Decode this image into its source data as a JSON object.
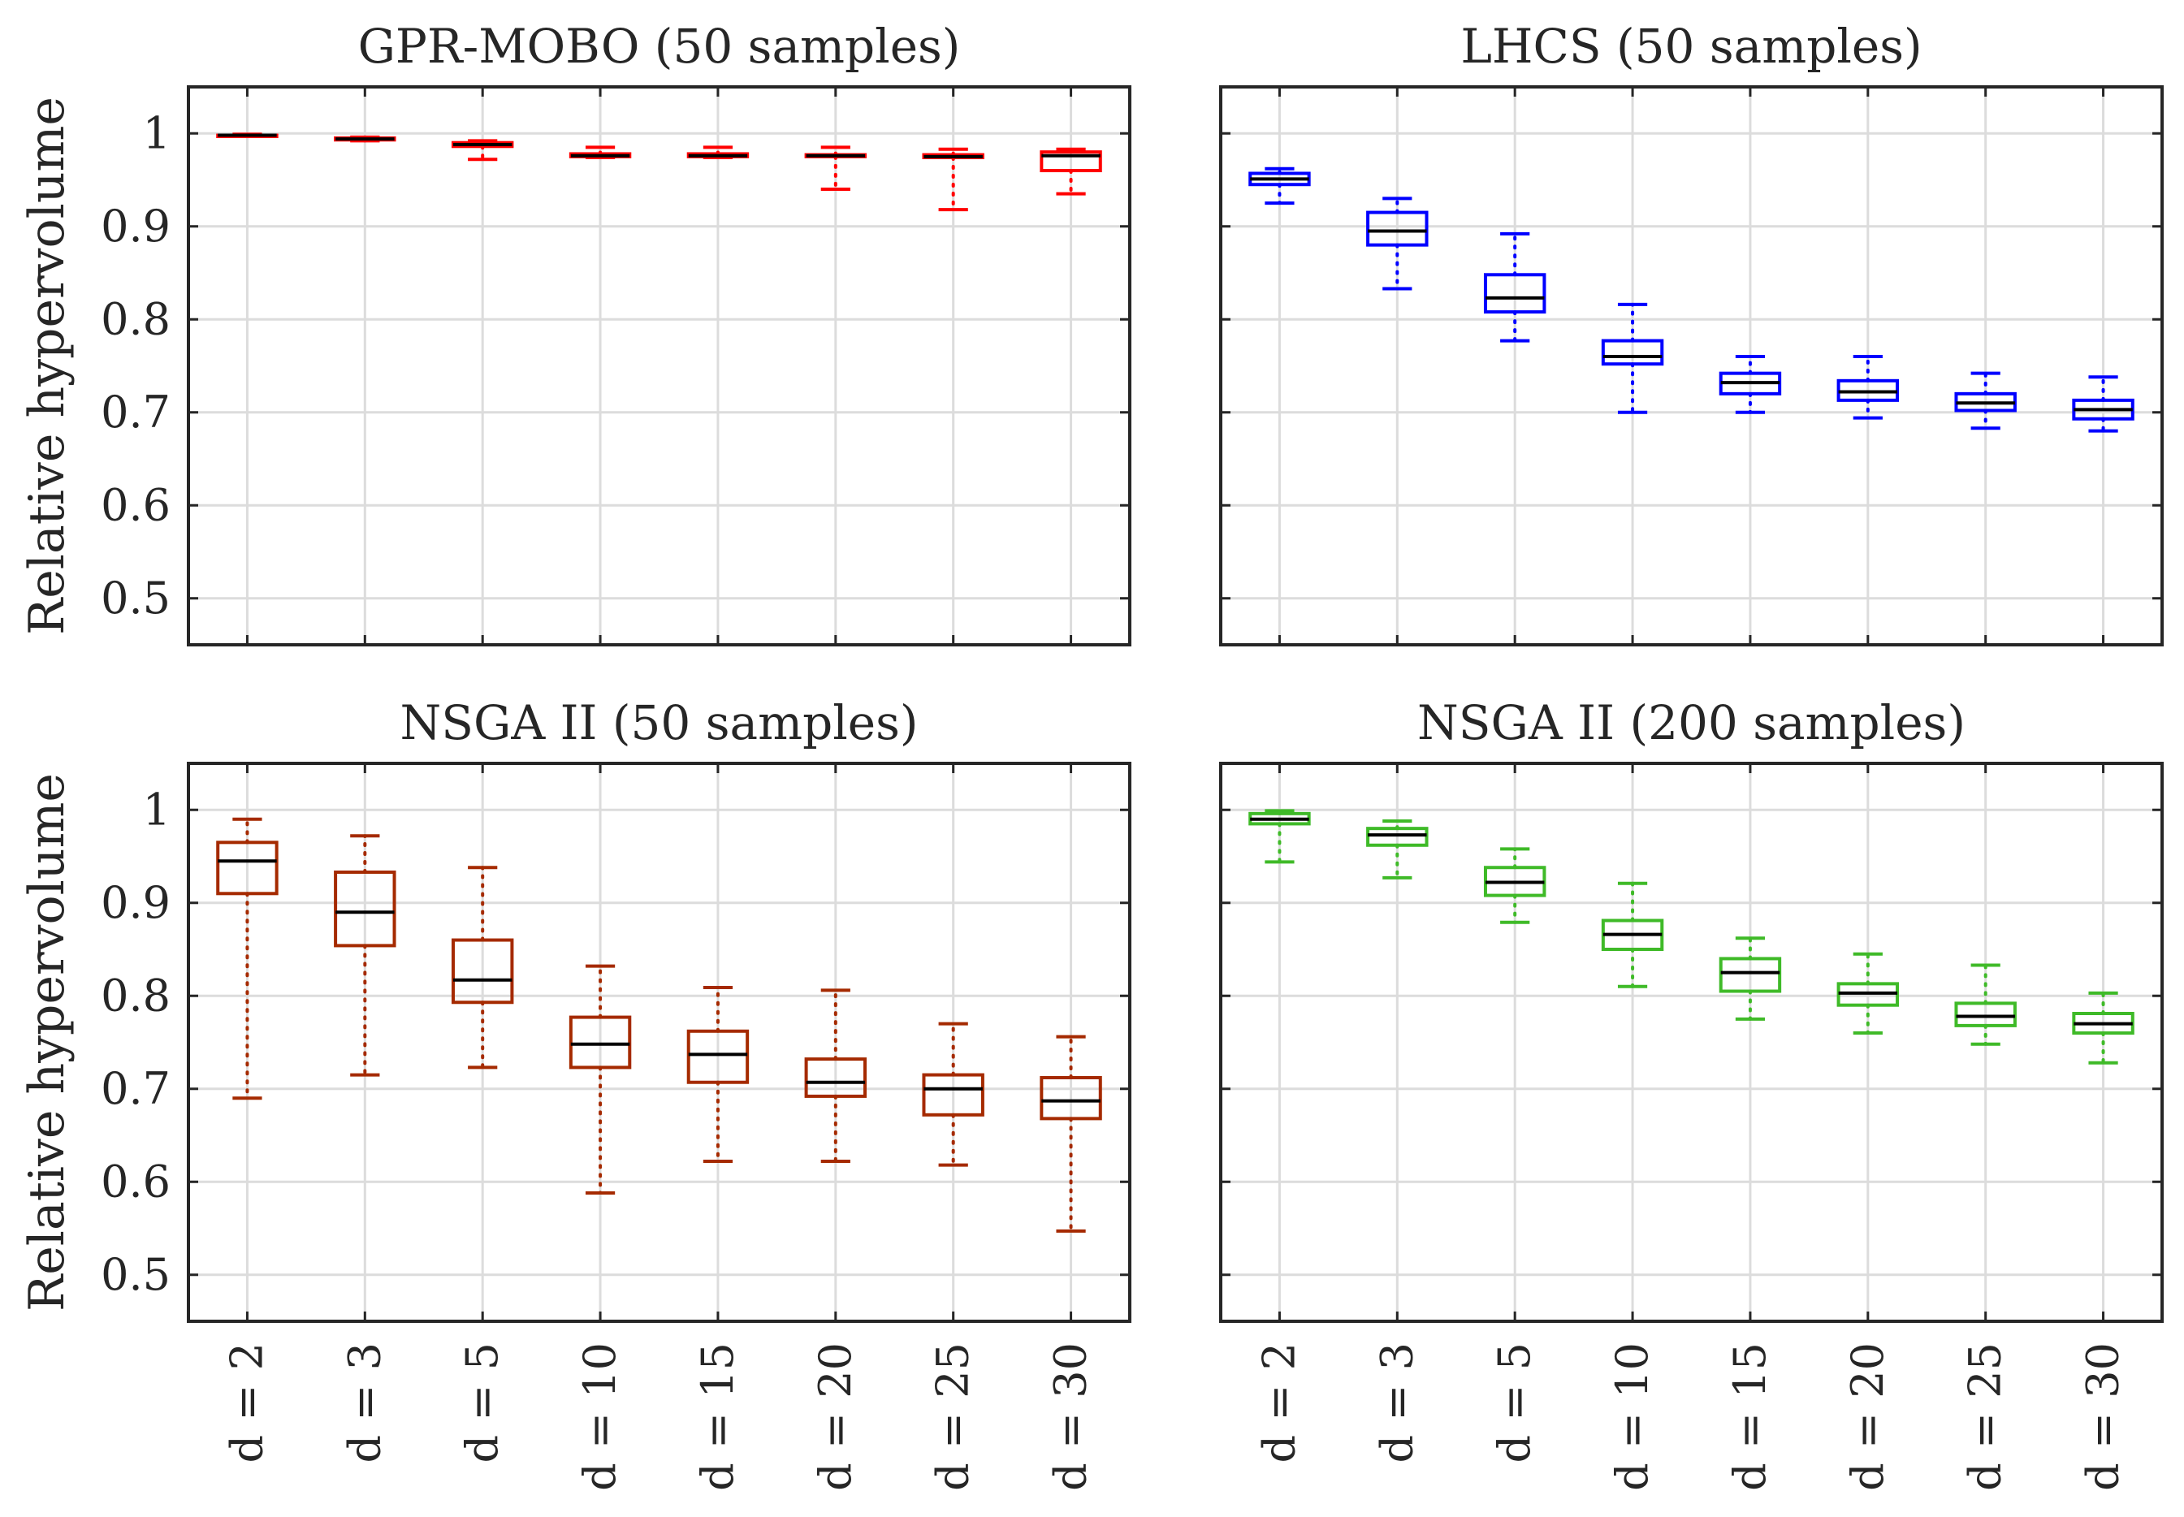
{
  "colors": {
    "axes": "#262626",
    "grid": "#dcdcdc",
    "median": "#000000"
  },
  "chart_data": [
    {
      "type": "boxplot",
      "title": "GPR-MOBO (50 samples)",
      "ylabel": "Relative hypervolume",
      "xlabel": "",
      "ylim": [
        0.45,
        1.05
      ],
      "yticks": [
        0.5,
        0.6,
        0.7,
        0.8,
        0.9,
        1
      ],
      "ytick_labels": [
        "0.5",
        "0.6",
        "0.7",
        "0.8",
        "0.9",
        "1"
      ],
      "categories": [
        "d = 2",
        "d = 3",
        "d = 5",
        "d = 10",
        "d = 15",
        "d = 20",
        "d = 25",
        "d = 30"
      ],
      "show_ytick_labels": true,
      "show_xtick_labels": false,
      "color": "#ff0000",
      "grid": true,
      "boxes": [
        {
          "whisker_low": 0.997,
          "q1": 0.997,
          "median": 0.998,
          "q3": 0.998,
          "whisker_high": 0.999
        },
        {
          "whisker_low": 0.992,
          "q1": 0.993,
          "median": 0.994,
          "q3": 0.995,
          "whisker_high": 0.996
        },
        {
          "whisker_low": 0.972,
          "q1": 0.986,
          "median": 0.988,
          "q3": 0.99,
          "whisker_high": 0.992
        },
        {
          "whisker_low": 0.974,
          "q1": 0.975,
          "median": 0.976,
          "q3": 0.978,
          "whisker_high": 0.985
        },
        {
          "whisker_low": 0.974,
          "q1": 0.975,
          "median": 0.976,
          "q3": 0.978,
          "whisker_high": 0.985
        },
        {
          "whisker_low": 0.94,
          "q1": 0.975,
          "median": 0.976,
          "q3": 0.977,
          "whisker_high": 0.985
        },
        {
          "whisker_low": 0.918,
          "q1": 0.974,
          "median": 0.975,
          "q3": 0.977,
          "whisker_high": 0.983
        },
        {
          "whisker_low": 0.935,
          "q1": 0.96,
          "median": 0.976,
          "q3": 0.98,
          "whisker_high": 0.983
        }
      ]
    },
    {
      "type": "boxplot",
      "title": "LHCS (50 samples)",
      "ylabel": "",
      "xlabel": "",
      "ylim": [
        0.45,
        1.05
      ],
      "yticks": [
        0.5,
        0.6,
        0.7,
        0.8,
        0.9,
        1
      ],
      "ytick_labels": [
        "0.5",
        "0.6",
        "0.7",
        "0.8",
        "0.9",
        "1"
      ],
      "categories": [
        "d = 2",
        "d = 3",
        "d = 5",
        "d = 10",
        "d = 15",
        "d = 20",
        "d = 25",
        "d = 30"
      ],
      "show_ytick_labels": false,
      "show_xtick_labels": false,
      "color": "#0000ff",
      "grid": true,
      "boxes": [
        {
          "whisker_low": 0.925,
          "q1": 0.945,
          "median": 0.951,
          "q3": 0.957,
          "whisker_high": 0.962
        },
        {
          "whisker_low": 0.833,
          "q1": 0.88,
          "median": 0.895,
          "q3": 0.915,
          "whisker_high": 0.93
        },
        {
          "whisker_low": 0.777,
          "q1": 0.808,
          "median": 0.823,
          "q3": 0.848,
          "whisker_high": 0.892
        },
        {
          "whisker_low": 0.7,
          "q1": 0.752,
          "median": 0.76,
          "q3": 0.777,
          "whisker_high": 0.816
        },
        {
          "whisker_low": 0.7,
          "q1": 0.72,
          "median": 0.732,
          "q3": 0.742,
          "whisker_high": 0.76
        },
        {
          "whisker_low": 0.694,
          "q1": 0.713,
          "median": 0.722,
          "q3": 0.734,
          "whisker_high": 0.76
        },
        {
          "whisker_low": 0.683,
          "q1": 0.702,
          "median": 0.71,
          "q3": 0.72,
          "whisker_high": 0.742
        },
        {
          "whisker_low": 0.68,
          "q1": 0.693,
          "median": 0.703,
          "q3": 0.713,
          "whisker_high": 0.738
        }
      ]
    },
    {
      "type": "boxplot",
      "title": "NSGA II (50 samples)",
      "ylabel": "Relative hypervolume",
      "xlabel": "",
      "ylim": [
        0.45,
        1.05
      ],
      "yticks": [
        0.5,
        0.6,
        0.7,
        0.8,
        0.9,
        1
      ],
      "ytick_labels": [
        "0.5",
        "0.6",
        "0.7",
        "0.8",
        "0.9",
        "1"
      ],
      "categories": [
        "d = 2",
        "d = 3",
        "d = 5",
        "d = 10",
        "d = 15",
        "d = 20",
        "d = 25",
        "d = 30"
      ],
      "show_ytick_labels": true,
      "show_xtick_labels": true,
      "color": "#a52a00",
      "grid": true,
      "boxes": [
        {
          "whisker_low": 0.69,
          "q1": 0.91,
          "median": 0.945,
          "q3": 0.965,
          "whisker_high": 0.99
        },
        {
          "whisker_low": 0.715,
          "q1": 0.854,
          "median": 0.89,
          "q3": 0.933,
          "whisker_high": 0.972
        },
        {
          "whisker_low": 0.723,
          "q1": 0.793,
          "median": 0.817,
          "q3": 0.86,
          "whisker_high": 0.938
        },
        {
          "whisker_low": 0.588,
          "q1": 0.723,
          "median": 0.748,
          "q3": 0.777,
          "whisker_high": 0.832
        },
        {
          "whisker_low": 0.622,
          "q1": 0.707,
          "median": 0.737,
          "q3": 0.762,
          "whisker_high": 0.809
        },
        {
          "whisker_low": 0.622,
          "q1": 0.692,
          "median": 0.707,
          "q3": 0.732,
          "whisker_high": 0.806
        },
        {
          "whisker_low": 0.618,
          "q1": 0.672,
          "median": 0.7,
          "q3": 0.715,
          "whisker_high": 0.77
        },
        {
          "whisker_low": 0.547,
          "q1": 0.668,
          "median": 0.687,
          "q3": 0.712,
          "whisker_high": 0.756
        }
      ]
    },
    {
      "type": "boxplot",
      "title": "NSGA II (200 samples)",
      "ylabel": "",
      "xlabel": "",
      "ylim": [
        0.45,
        1.05
      ],
      "yticks": [
        0.5,
        0.6,
        0.7,
        0.8,
        0.9,
        1
      ],
      "ytick_labels": [
        "0.5",
        "0.6",
        "0.7",
        "0.8",
        "0.9",
        "1"
      ],
      "categories": [
        "d = 2",
        "d = 3",
        "d = 5",
        "d = 10",
        "d = 15",
        "d = 20",
        "d = 25",
        "d = 30"
      ],
      "show_ytick_labels": false,
      "show_xtick_labels": true,
      "color": "#3fba28",
      "grid": true,
      "boxes": [
        {
          "whisker_low": 0.944,
          "q1": 0.985,
          "median": 0.99,
          "q3": 0.996,
          "whisker_high": 0.999
        },
        {
          "whisker_low": 0.927,
          "q1": 0.962,
          "median": 0.973,
          "q3": 0.98,
          "whisker_high": 0.988
        },
        {
          "whisker_low": 0.879,
          "q1": 0.908,
          "median": 0.922,
          "q3": 0.938,
          "whisker_high": 0.958
        },
        {
          "whisker_low": 0.81,
          "q1": 0.85,
          "median": 0.866,
          "q3": 0.881,
          "whisker_high": 0.921
        },
        {
          "whisker_low": 0.775,
          "q1": 0.805,
          "median": 0.825,
          "q3": 0.84,
          "whisker_high": 0.862
        },
        {
          "whisker_low": 0.76,
          "q1": 0.79,
          "median": 0.803,
          "q3": 0.813,
          "whisker_high": 0.845
        },
        {
          "whisker_low": 0.748,
          "q1": 0.768,
          "median": 0.778,
          "q3": 0.792,
          "whisker_high": 0.833
        },
        {
          "whisker_low": 0.728,
          "q1": 0.76,
          "median": 0.77,
          "q3": 0.781,
          "whisker_high": 0.803
        }
      ]
    }
  ]
}
